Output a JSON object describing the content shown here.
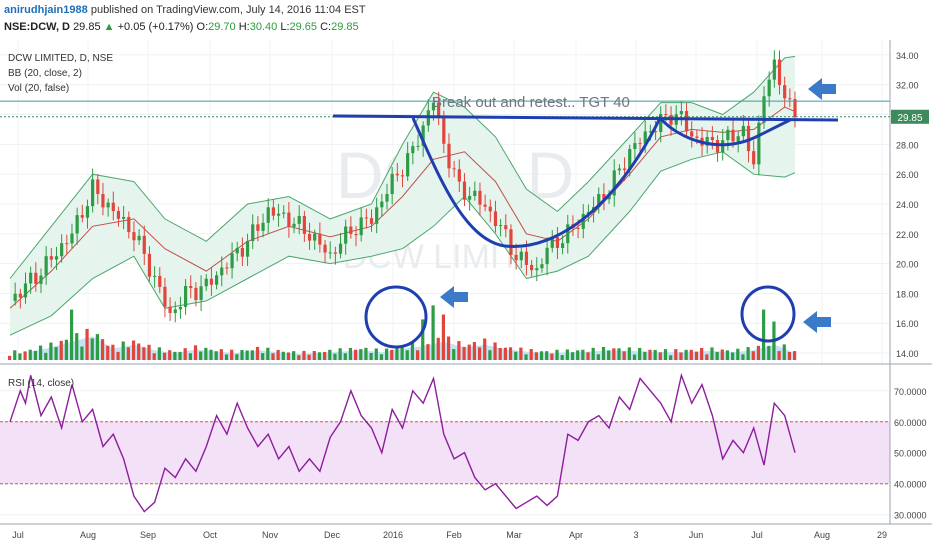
{
  "header": {
    "author": "anirudhjain1988",
    "published_text": "published on TradingView.com, July 14, 2016 11:04 EST",
    "symbol": "NSE:DCW, D",
    "last": "29.85",
    "change": "+0.05 (+0.17%)",
    "o_label": "O:",
    "o_value": "29.70",
    "h_label": "H:",
    "h_value": "30.40",
    "l_label": "L:",
    "l_value": "29.65",
    "c_label": "C:",
    "c_value": "29.85"
  },
  "legend": {
    "title": "DCW LIMITED, D, NSE",
    "bb": "BB (20, close, 2)",
    "vol": "Vol (20, false)",
    "rsi": "RSI (14, close)"
  },
  "watermark": {
    "big": "DCW, D",
    "small": "DCW LIMITED"
  },
  "annotation": "Break out and retest.. TGT 40",
  "colors": {
    "up": "#2e9b45",
    "down": "#e0463c",
    "bb_band": "#4aa86a",
    "bb_fill": "#e6f4ee",
    "bb_mid": "#c0504d",
    "drawing": "#1f3fb0",
    "arrow": "#3a7ac8",
    "rsi": "#8e1d9e",
    "rsi_fill": "#f2e1f7",
    "rsi_line": "#e05050",
    "price_tag": "#3d8a5a"
  },
  "chart_data": [
    {
      "type": "candlestick",
      "title": "DCW LIMITED, D, NSE",
      "x_ticks": [
        "Jul",
        "Aug",
        "Sep",
        "Oct",
        "Nov",
        "Dec",
        "2016",
        "Feb",
        "Mar",
        "Apr",
        "3",
        "Jun",
        "Jul",
        "Aug",
        "29"
      ],
      "y_ticks": [
        "14.00",
        "16.00",
        "18.00",
        "20.00",
        "22.00",
        "24.00",
        "26.00",
        "28.00",
        "30.00",
        "32.00",
        "34.00"
      ],
      "ylim": [
        13.4,
        35.0
      ],
      "last_price": "29.85",
      "close_path": [
        [
          0,
          17.5
        ],
        [
          3,
          19.5
        ],
        [
          6,
          22
        ],
        [
          8,
          25
        ],
        [
          10,
          23.5
        ],
        [
          12,
          22
        ],
        [
          14,
          19
        ],
        [
          15.5,
          16.5
        ],
        [
          17,
          18
        ],
        [
          19,
          18.5
        ],
        [
          21,
          20
        ],
        [
          23,
          21.5
        ],
        [
          25,
          23.5
        ],
        [
          27,
          23
        ],
        [
          29,
          22
        ],
        [
          31,
          20.5
        ],
        [
          32,
          21.5
        ],
        [
          33.5,
          22.5
        ],
        [
          35,
          23
        ],
        [
          37,
          25.5
        ],
        [
          39,
          27.5
        ],
        [
          41,
          31
        ],
        [
          42,
          28
        ],
        [
          43.5,
          25
        ],
        [
          45,
          24.5
        ],
        [
          47,
          23
        ],
        [
          49,
          20.5
        ],
        [
          51,
          19.5
        ],
        [
          52,
          21
        ],
        [
          54,
          22
        ],
        [
          56,
          23.5
        ],
        [
          58,
          25
        ],
        [
          60,
          27.5
        ],
        [
          62,
          29
        ],
        [
          64,
          30
        ],
        [
          65,
          29.8
        ],
        [
          66,
          28.5
        ],
        [
          68,
          28
        ],
        [
          70,
          28.5
        ],
        [
          71,
          29
        ],
        [
          72,
          26.5
        ],
        [
          73,
          31.8
        ],
        [
          74,
          33
        ],
        [
          75,
          31.5
        ],
        [
          76,
          29.85
        ]
      ],
      "bollinger": {
        "upper": [
          [
            0,
            19
          ],
          [
            4,
            22.5
          ],
          [
            8,
            26
          ],
          [
            12,
            25.5
          ],
          [
            15,
            23
          ],
          [
            19,
            21.5
          ],
          [
            23,
            24
          ],
          [
            27,
            24.5
          ],
          [
            31,
            23
          ],
          [
            35,
            24
          ],
          [
            38,
            28
          ],
          [
            41,
            31.5
          ],
          [
            44,
            30.5
          ],
          [
            47,
            28.5
          ],
          [
            50,
            25
          ],
          [
            53,
            23.5
          ],
          [
            56,
            25.5
          ],
          [
            60,
            28.5
          ],
          [
            63,
            30.8
          ],
          [
            66,
            30.8
          ],
          [
            69,
            30
          ],
          [
            72,
            31.5
          ],
          [
            75,
            33.8
          ],
          [
            76,
            33.9
          ]
        ],
        "middle": [
          [
            0,
            17
          ],
          [
            4,
            19.5
          ],
          [
            8,
            22.5
          ],
          [
            12,
            23
          ],
          [
            15,
            21
          ],
          [
            19,
            19.5
          ],
          [
            23,
            21.5
          ],
          [
            27,
            22.5
          ],
          [
            31,
            21.8
          ],
          [
            35,
            22.5
          ],
          [
            38,
            24.5
          ],
          [
            41,
            27
          ],
          [
            44,
            27.5
          ],
          [
            47,
            25.5
          ],
          [
            50,
            22
          ],
          [
            53,
            21.5
          ],
          [
            56,
            23
          ],
          [
            60,
            26
          ],
          [
            63,
            28.5
          ],
          [
            66,
            29
          ],
          [
            69,
            28.8
          ],
          [
            72,
            29
          ],
          [
            75,
            30.5
          ],
          [
            76,
            30.2
          ]
        ],
        "lower": [
          [
            0,
            15.2
          ],
          [
            4,
            16.5
          ],
          [
            8,
            19
          ],
          [
            12,
            20.5
          ],
          [
            15,
            17
          ],
          [
            19,
            17.5
          ],
          [
            23,
            19
          ],
          [
            27,
            20.5
          ],
          [
            31,
            20
          ],
          [
            35,
            20.5
          ],
          [
            38,
            21
          ],
          [
            41,
            22.5
          ],
          [
            44,
            24.5
          ],
          [
            47,
            22
          ],
          [
            50,
            19
          ],
          [
            53,
            19.5
          ],
          [
            56,
            20.5
          ],
          [
            60,
            23.5
          ],
          [
            63,
            26.2
          ],
          [
            66,
            27
          ],
          [
            69,
            27.5
          ],
          [
            72,
            26
          ],
          [
            75,
            25.8
          ],
          [
            76,
            26.1
          ]
        ]
      },
      "volume": [
        [
          2,
          1.2
        ],
        [
          4,
          1.8
        ],
        [
          6,
          2.6
        ],
        [
          8,
          3.4
        ],
        [
          10,
          1.6
        ],
        [
          12,
          2.2
        ],
        [
          14,
          1.4
        ],
        [
          16,
          1.0
        ],
        [
          18,
          1.5
        ],
        [
          20,
          1.2
        ],
        [
          22,
          1.0
        ],
        [
          24,
          1.4
        ],
        [
          26,
          1.1
        ],
        [
          28,
          0.9
        ],
        [
          30,
          1.0
        ],
        [
          32,
          1.2
        ],
        [
          34,
          1.4
        ],
        [
          36,
          1.1
        ],
        [
          38,
          1.6
        ],
        [
          40,
          2.0
        ],
        [
          42,
          2.6
        ],
        [
          44,
          1.8
        ],
        [
          46,
          2.2
        ],
        [
          48,
          1.5
        ],
        [
          50,
          1.2
        ],
        [
          52,
          1.0
        ],
        [
          54,
          1.1
        ],
        [
          56,
          1.2
        ],
        [
          58,
          1.4
        ],
        [
          60,
          1.3
        ],
        [
          62,
          1.2
        ],
        [
          64,
          1.1
        ],
        [
          66,
          1.2
        ],
        [
          68,
          1.3
        ],
        [
          70,
          1.1
        ],
        [
          72,
          1.4
        ],
        [
          74,
          2.2
        ],
        [
          76,
          1.0
        ]
      ],
      "volume_spikes": [
        [
          6,
          7.2
        ],
        [
          40,
          5.8
        ],
        [
          41,
          7.8
        ],
        [
          42,
          6.5
        ],
        [
          73,
          7.2
        ],
        [
          74,
          5.5
        ]
      ],
      "resistance_level": 30.9
    },
    {
      "type": "line",
      "title": "RSI (14, close)",
      "y_ticks": [
        "30.0000",
        "40.0000",
        "50.0000",
        "60.0000",
        "70.0000"
      ],
      "ylim": [
        27,
        78
      ],
      "bands": [
        40,
        60
      ],
      "values": [
        [
          0,
          60
        ],
        [
          1,
          70
        ],
        [
          1.5,
          66
        ],
        [
          2,
          75
        ],
        [
          3,
          62
        ],
        [
          4,
          68
        ],
        [
          5,
          58
        ],
        [
          6,
          72
        ],
        [
          7,
          60
        ],
        [
          8,
          64
        ],
        [
          9,
          52
        ],
        [
          10,
          56
        ],
        [
          11,
          48
        ],
        [
          12,
          36
        ],
        [
          13,
          31
        ],
        [
          14,
          34
        ],
        [
          15,
          45
        ],
        [
          16,
          42
        ],
        [
          17,
          48
        ],
        [
          18,
          44
        ],
        [
          19,
          52
        ],
        [
          20,
          62
        ],
        [
          21,
          56
        ],
        [
          22,
          66
        ],
        [
          23,
          58
        ],
        [
          24,
          52
        ],
        [
          25,
          56
        ],
        [
          26,
          48
        ],
        [
          27,
          52
        ],
        [
          28,
          44
        ],
        [
          29,
          48
        ],
        [
          30,
          44
        ],
        [
          31,
          55
        ],
        [
          32,
          60
        ],
        [
          33,
          70
        ],
        [
          34,
          62
        ],
        [
          35,
          58
        ],
        [
          36,
          50
        ],
        [
          37,
          64
        ],
        [
          38,
          58
        ],
        [
          39,
          70
        ],
        [
          40,
          66
        ],
        [
          41,
          74
        ],
        [
          42,
          56
        ],
        [
          43,
          48
        ],
        [
          44,
          50
        ],
        [
          45,
          42
        ],
        [
          46,
          38
        ],
        [
          47,
          40
        ],
        [
          48,
          36
        ],
        [
          49,
          32
        ],
        [
          50,
          34
        ],
        [
          51,
          36
        ],
        [
          52,
          33
        ],
        [
          53,
          36
        ],
        [
          54,
          56
        ],
        [
          55,
          54
        ],
        [
          56,
          60
        ],
        [
          57,
          62
        ],
        [
          58,
          58
        ],
        [
          59,
          68
        ],
        [
          60,
          64
        ],
        [
          61,
          74
        ],
        [
          62,
          70
        ],
        [
          63,
          66
        ],
        [
          64,
          60
        ],
        [
          65,
          75
        ],
        [
          66,
          66
        ],
        [
          67,
          72
        ],
        [
          68,
          62
        ],
        [
          69,
          48
        ],
        [
          70,
          54
        ],
        [
          71,
          50
        ],
        [
          72,
          58
        ],
        [
          73,
          46
        ],
        [
          74,
          66
        ],
        [
          75,
          62
        ],
        [
          76,
          50
        ]
      ]
    }
  ]
}
